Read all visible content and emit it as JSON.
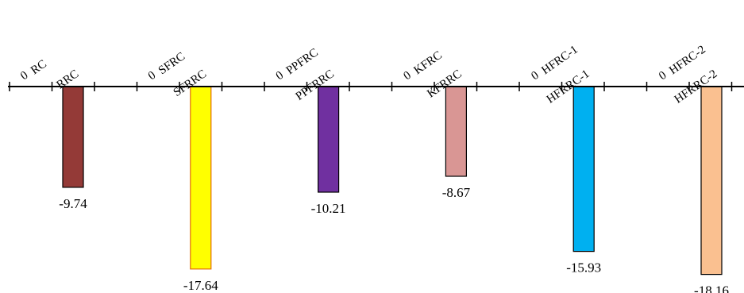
{
  "chart_data": {
    "type": "bar",
    "categories": [
      "RC",
      "RRC",
      "SFRC",
      "SFRRC",
      "PPFRC",
      "PPFRRC",
      "KFRC",
      "KFRRC",
      "HFRC-1",
      "HFRRC-1",
      "HFRC-2",
      "HFRRC-2"
    ],
    "series": [
      {
        "values": [
          0,
          -9.74,
          0,
          -17.64,
          0,
          -10.21,
          0,
          -8.67,
          0,
          -15.93,
          0,
          -18.16
        ]
      }
    ],
    "data_labels": [
      "0",
      "-9.74",
      "0",
      "-17.64",
      "0",
      "-10.21",
      "0",
      "-8.67",
      "0",
      "-15.93",
      "0",
      "-18.16"
    ],
    "colors": [
      "#ffffff",
      "#943a37",
      "#ffffff",
      "#ffff00",
      "#ffffff",
      "#7030a0",
      "#ffffff",
      "#d99694",
      "#ffffff",
      "#00b0f0",
      "#ffffff",
      "#fac090"
    ],
    "border_colors": [
      "#000000",
      "#000000",
      "#000000",
      "#e36c09",
      "#000000",
      "#000000",
      "#000000",
      "#000000",
      "#000000",
      "#000000",
      "#000000",
      "#000000"
    ],
    "xaxis_position": "top",
    "ylim": [
      -18.5,
      0
    ],
    "grid": false,
    "legend": "none",
    "title": "",
    "xlabel": "",
    "ylabel": ""
  }
}
